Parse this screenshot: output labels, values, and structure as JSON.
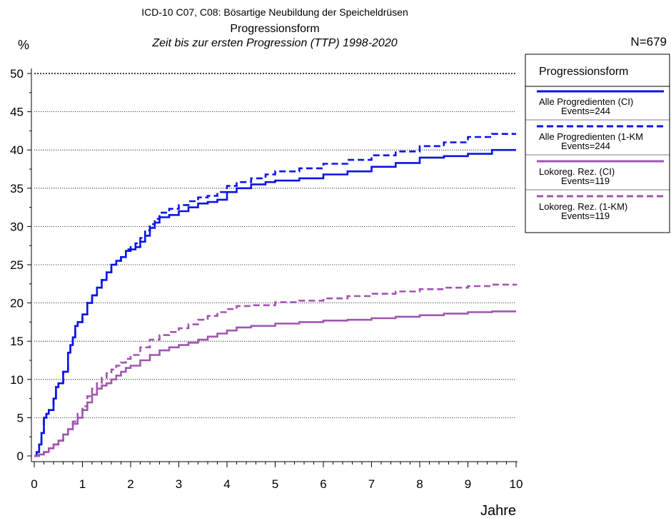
{
  "chart_data": {
    "type": "line",
    "title": "ICD-10 C07, C08: Bösartige Neubildung der Speicheldrüsen",
    "subtitle": "Progressionsform",
    "subtitle2": "Zeit bis zur ersten Progression (TTP) 1998-2020",
    "n_label": "N=679",
    "ylabel": "%",
    "xlabel": "Jahre",
    "xlim": [
      0,
      10
    ],
    "ylim": [
      0,
      50
    ],
    "x_ticks": [
      "0",
      "1",
      "2",
      "3",
      "4",
      "5",
      "6",
      "7",
      "8",
      "9",
      "10"
    ],
    "y_ticks": [
      "0",
      "5",
      "10",
      "15",
      "20",
      "25",
      "30",
      "35",
      "40",
      "45",
      "50"
    ],
    "grid": "horizontal dotted",
    "legend": {
      "title": "Progressionsform",
      "placement": "right",
      "entries": [
        {
          "line1": "Alle Progredienten (CI)",
          "line2": "Events=244"
        },
        {
          "line1": "Alle Progredienten (1-KM",
          "line2": "Events=244"
        },
        {
          "line1": "Lokoreg. Rez. (CI)",
          "line2": "Events=119"
        },
        {
          "line1": "Lokoreg. Rez. (1-KM)",
          "line2": "Events=119"
        }
      ]
    },
    "colors": {
      "blue": "#0a14e6",
      "purple": "#a055b0"
    },
    "series": [
      {
        "name": "Alle Progredienten (CI)",
        "color": "#0a14e6",
        "dash": false,
        "x": [
          0,
          0.05,
          0.1,
          0.15,
          0.2,
          0.25,
          0.3,
          0.4,
          0.45,
          0.5,
          0.6,
          0.7,
          0.75,
          0.8,
          0.85,
          0.9,
          1.0,
          1.1,
          1.2,
          1.3,
          1.4,
          1.5,
          1.6,
          1.7,
          1.8,
          1.9,
          2.0,
          2.1,
          2.2,
          2.3,
          2.4,
          2.5,
          2.6,
          2.8,
          3.0,
          3.2,
          3.4,
          3.6,
          3.8,
          4.0,
          4.2,
          4.5,
          4.8,
          5.0,
          5.5,
          6.0,
          6.5,
          7.0,
          7.5,
          8.0,
          8.5,
          9.0,
          9.5,
          10.0
        ],
        "y": [
          0,
          0.5,
          1.5,
          3,
          5,
          5.5,
          6,
          7.5,
          9,
          9.5,
          11,
          13.5,
          14.5,
          15.5,
          17,
          17.5,
          18.5,
          20,
          21,
          22,
          23,
          24,
          25,
          25.5,
          26,
          26.8,
          27,
          27.3,
          28,
          28.8,
          29.8,
          30.5,
          31.2,
          31.5,
          32,
          32.5,
          33,
          33.2,
          33.5,
          34.5,
          35,
          35.5,
          35.8,
          36,
          36.3,
          36.8,
          37.2,
          37.8,
          38.3,
          39,
          39.2,
          39.5,
          40,
          40
        ]
      },
      {
        "name": "Alle Progredienten (1-KM",
        "color": "#0a14e6",
        "dash": true,
        "x": [
          0,
          0.05,
          0.1,
          0.15,
          0.2,
          0.25,
          0.3,
          0.4,
          0.45,
          0.5,
          0.6,
          0.7,
          0.75,
          0.8,
          0.85,
          0.9,
          1.0,
          1.1,
          1.2,
          1.3,
          1.4,
          1.5,
          1.6,
          1.7,
          1.8,
          1.9,
          2.0,
          2.1,
          2.2,
          2.3,
          2.4,
          2.5,
          2.6,
          2.8,
          3.0,
          3.2,
          3.4,
          3.6,
          3.8,
          4.0,
          4.2,
          4.5,
          4.8,
          5.0,
          5.5,
          6.0,
          6.5,
          7.0,
          7.5,
          8.0,
          8.5,
          9.0,
          9.5,
          10.0
        ],
        "y": [
          0,
          0.5,
          1.5,
          3,
          5,
          5.5,
          6,
          7.5,
          9,
          9.5,
          11,
          13.5,
          14.5,
          15.5,
          17,
          17.5,
          18.5,
          20,
          21,
          22,
          23,
          24,
          25,
          25.5,
          26,
          27,
          27.3,
          27.8,
          28.5,
          29.5,
          30.3,
          31,
          31.8,
          32.3,
          32.8,
          33.3,
          33.8,
          34,
          34.5,
          35.3,
          35.8,
          36.3,
          36.8,
          37.2,
          37.6,
          38.2,
          38.7,
          39.3,
          39.8,
          40.5,
          41,
          41.7,
          42.1,
          42.1
        ]
      },
      {
        "name": "Lokoreg. Rez. (CI)",
        "color": "#a055b0",
        "dash": false,
        "x": [
          0,
          0.1,
          0.2,
          0.3,
          0.4,
          0.5,
          0.6,
          0.7,
          0.8,
          0.9,
          1.0,
          1.1,
          1.2,
          1.3,
          1.4,
          1.5,
          1.6,
          1.7,
          1.8,
          1.9,
          2.0,
          2.2,
          2.4,
          2.6,
          2.8,
          3.0,
          3.2,
          3.4,
          3.6,
          3.8,
          4.0,
          4.2,
          4.5,
          5.0,
          5.5,
          6.0,
          6.5,
          7.0,
          7.5,
          8.0,
          8.5,
          9.0,
          9.5,
          10.0
        ],
        "y": [
          0,
          0.2,
          0.5,
          1,
          1.5,
          2,
          2.8,
          3.5,
          4.2,
          5,
          6,
          7,
          8,
          8.8,
          9.2,
          9.5,
          10,
          10.5,
          11,
          11.5,
          11.8,
          12.5,
          13.2,
          13.8,
          14.2,
          14.5,
          14.8,
          15.2,
          15.6,
          16,
          16.4,
          16.8,
          17,
          17.3,
          17.5,
          17.7,
          17.8,
          18,
          18.2,
          18.4,
          18.6,
          18.8,
          18.9,
          18.9
        ]
      },
      {
        "name": "Lokoreg. Rez. (1-KM)",
        "color": "#a055b0",
        "dash": true,
        "x": [
          0,
          0.1,
          0.2,
          0.3,
          0.4,
          0.5,
          0.6,
          0.7,
          0.8,
          0.9,
          1.0,
          1.1,
          1.2,
          1.3,
          1.4,
          1.5,
          1.6,
          1.7,
          1.8,
          1.9,
          2.0,
          2.2,
          2.4,
          2.6,
          2.8,
          3.0,
          3.2,
          3.4,
          3.6,
          3.8,
          4.0,
          4.2,
          4.5,
          5.0,
          5.5,
          6.0,
          6.5,
          7.0,
          7.5,
          8.0,
          8.5,
          9.0,
          9.5,
          10.0
        ],
        "y": [
          0,
          0.2,
          0.5,
          1,
          1.5,
          2,
          2.8,
          3.5,
          4.5,
          5.5,
          6.5,
          7.8,
          8.8,
          9.5,
          10.2,
          10.8,
          11.3,
          11.8,
          12.2,
          12.7,
          13.2,
          14.2,
          15.2,
          15.8,
          16.2,
          16.7,
          17.2,
          17.8,
          18.3,
          18.8,
          19.2,
          19.6,
          19.7,
          20.1,
          20.3,
          20.6,
          20.9,
          21.2,
          21.5,
          21.8,
          22,
          22.2,
          22.4,
          22.5
        ]
      }
    ]
  }
}
